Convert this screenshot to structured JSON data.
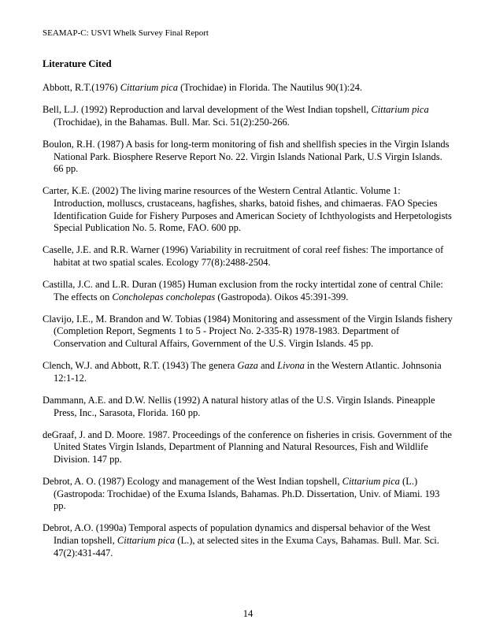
{
  "header": "SEAMAP-C: USVI Whelk Survey Final Report",
  "section_title": "Literature Cited",
  "page_number": "14",
  "references": [
    {
      "pre": "Abbott, R.T.(1976) ",
      "it1": "Cittarium pica",
      "mid1": " (Trochidae) in Florida. The Nautilus 90(1):24.",
      "it2": "",
      "mid2": "",
      "it3": "",
      "post": ""
    },
    {
      "pre": "Bell, L.J. (1992) Reproduction and larval development of the West Indian topshell, ",
      "it1": "Cittarium pica",
      "mid1": " (Trochidae), in the Bahamas. Bull. Mar. Sci. 51(2):250-266.",
      "it2": "",
      "mid2": "",
      "it3": "",
      "post": ""
    },
    {
      "pre": "Boulon, R.H. (1987) A basis for long-term monitoring of fish and shellfish species in the Virgin Islands National Park. Biosphere Reserve Report No. 22. Virgin Islands National Park, U.S Virgin Islands. 66 pp.",
      "it1": "",
      "mid1": "",
      "it2": "",
      "mid2": "",
      "it3": "",
      "post": ""
    },
    {
      "pre": "Carter, K.E. (2002) The living marine resources of the Western Central Atlantic. Volume 1: Introduction, molluscs, crustaceans, hagfishes, sharks, batoid fishes, and chimaeras. FAO Species Identification Guide for Fishery Purposes and American Society of Ichthyologists and Herpetologists Special Publication No. 5. Rome, FAO. 600 pp.",
      "it1": "",
      "mid1": "",
      "it2": "",
      "mid2": "",
      "it3": "",
      "post": ""
    },
    {
      "pre": "Caselle, J.E. and R.R. Warner (1996) Variability in recruitment of coral reef fishes: The importance of habitat at two spatial scales. Ecology 77(8):2488-2504.",
      "it1": "",
      "mid1": "",
      "it2": "",
      "mid2": "",
      "it3": "",
      "post": ""
    },
    {
      "pre": "Castilla, J.C. and L.R. Duran (1985) Human exclusion from the rocky intertidal zone of central Chile: The effects on ",
      "it1": "Concholepas concholepas",
      "mid1": " (Gastropoda). Oikos 45:391-399.",
      "it2": "",
      "mid2": "",
      "it3": "",
      "post": ""
    },
    {
      "pre": "Clavijo, I.E., M. Brandon and W. Tobias (1984) Monitoring and assessment of the Virgin Islands fishery (Completion Report, Segments 1 to 5 - Project No. 2-335-R) 1978-1983. Department of Conservation and Cultural Affairs, Government of the U.S. Virgin Islands. 45 pp.",
      "it1": "",
      "mid1": "",
      "it2": "",
      "mid2": "",
      "it3": "",
      "post": ""
    },
    {
      "pre": "Clench, W.J. and Abbott, R.T. (1943) The genera ",
      "it1": "Gaza",
      "mid1": " and ",
      "it2": "Livona",
      "mid2": " in the Western Atlantic. Johnsonia 12:1-12.",
      "it3": "",
      "post": ""
    },
    {
      "pre": "Dammann, A.E. and D.W. Nellis (1992) A natural history atlas of the U.S. Virgin Islands. Pineapple Press, Inc., Sarasota, Florida. 160 pp.",
      "it1": "",
      "mid1": "",
      "it2": "",
      "mid2": "",
      "it3": "",
      "post": ""
    },
    {
      "pre": "deGraaf, J. and D. Moore. 1987. Proceedings of the conference on fisheries in crisis. Government of the United States Virgin Islands, Department of Planning and Natural Resources, Fish and Wildlife Division. 147 pp.",
      "it1": "",
      "mid1": "",
      "it2": "",
      "mid2": "",
      "it3": "",
      "post": ""
    },
    {
      "pre": "Debrot, A. O. (1987) Ecology and management of the West Indian topshell, ",
      "it1": "Cittarium pica",
      "mid1": " (L.) (Gastropoda: Trochidae) of the Exuma Islands, Bahamas. Ph.D. Dissertation, Univ. of Miami. 193 pp.",
      "it2": "",
      "mid2": "",
      "it3": "",
      "post": ""
    },
    {
      "pre": "Debrot, A.O. (1990a) Temporal aspects of population dynamics and dispersal behavior of the West Indian topshell, ",
      "it1": "Cittarium pica",
      "mid1": " (L.), at selected sites in the Exuma Cays, Bahamas. Bull. Mar. Sci. 47(2):431-447.",
      "it2": "",
      "mid2": "",
      "it3": "",
      "post": ""
    }
  ]
}
